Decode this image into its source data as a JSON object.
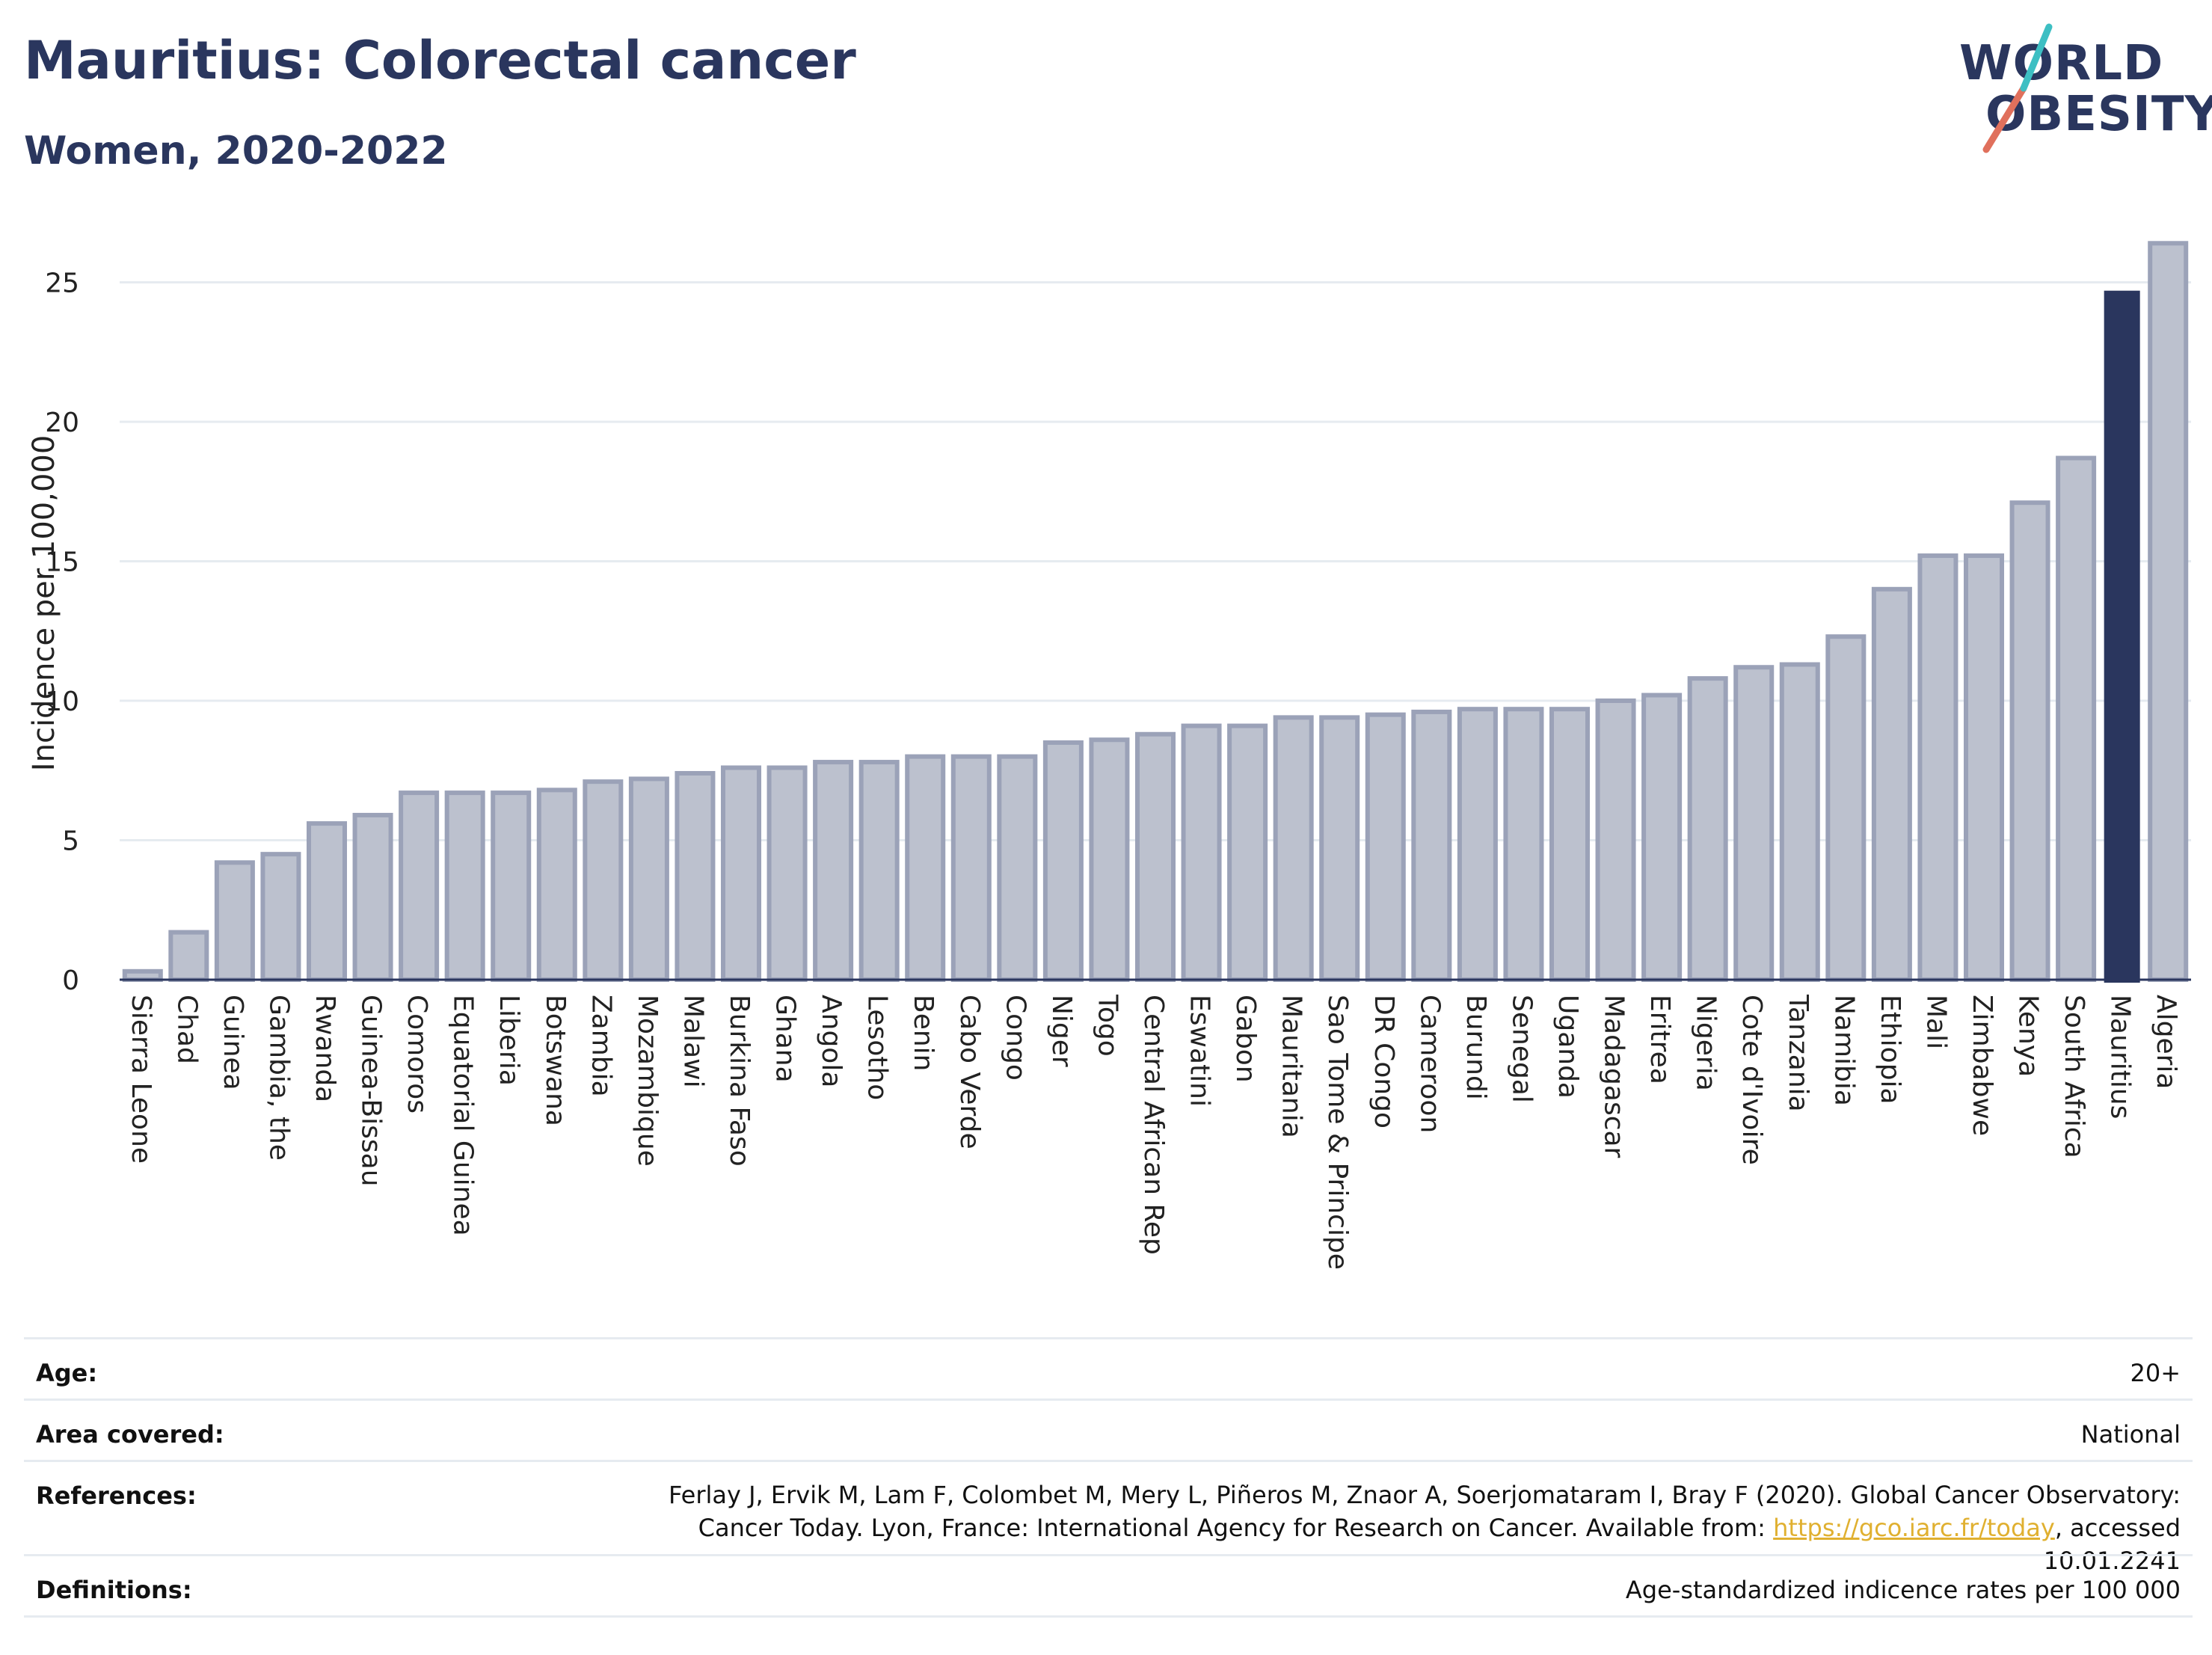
{
  "header": {
    "title": "Mauritius: Colorectal cancer",
    "subtitle": "Women, 2020-2022"
  },
  "logo": {
    "line1": "WORLD",
    "line2": "OBESITY",
    "brand_color": "#2a365e",
    "slash_colors": [
      "#e0705c",
      "#3dbfc3"
    ]
  },
  "colors": {
    "highlight": "#2a365e",
    "bar_fill": "#bcc1ce",
    "bar_stroke": "#9ba2b8",
    "grid": "#e6ebf0",
    "axis": "#2a365e"
  },
  "chart_data": {
    "type": "bar",
    "ylabel": "Incidence per 100,000",
    "ylim": [
      0,
      27
    ],
    "yticks": [
      0,
      5,
      10,
      15,
      20,
      25
    ],
    "highlight": "Mauritius",
    "grid": true,
    "categories": [
      "Sierra Leone",
      "Chad",
      "Guinea",
      "Gambia, the",
      "Rwanda",
      "Guinea-Bissau",
      "Comoros",
      "Equatorial Guinea",
      "Liberia",
      "Botswana",
      "Zambia",
      "Mozambique",
      "Malawi",
      "Burkina Faso",
      "Ghana",
      "Angola",
      "Lesotho",
      "Benin",
      "Cabo Verde",
      "Congo",
      "Niger",
      "Togo",
      "Central African Rep",
      "Eswatini",
      "Gabon",
      "Mauritania",
      "Sao Tome & Principe",
      "DR Congo",
      "Cameroon",
      "Burundi",
      "Senegal",
      "Uganda",
      "Madagascar",
      "Eritrea",
      "Nigeria",
      "Cote d'Ivoire",
      "Tanzania",
      "Namibia",
      "Ethiopia",
      "Mali",
      "Zimbabwe",
      "Kenya",
      "South Africa",
      "Mauritius",
      "Algeria"
    ],
    "values": [
      0.3,
      1.7,
      4.2,
      4.5,
      5.6,
      5.9,
      6.7,
      6.7,
      6.7,
      6.8,
      7.1,
      7.2,
      7.4,
      7.6,
      7.6,
      7.8,
      7.8,
      8.0,
      8.0,
      8.0,
      8.5,
      8.6,
      8.8,
      9.1,
      9.1,
      9.4,
      9.4,
      9.5,
      9.6,
      9.7,
      9.7,
      9.7,
      10.0,
      10.2,
      10.8,
      11.2,
      11.3,
      12.3,
      14.0,
      15.2,
      15.2,
      17.1,
      18.7,
      24.7,
      26.4
    ]
  },
  "meta": {
    "age_label": "Age:",
    "age_value": "20+",
    "area_label": "Area covered:",
    "area_value": "National",
    "references_label": "References:",
    "references_text_1": "Ferlay J, Ervik M, Lam F, Colombet M, Mery L, Piñeros M, Znaor A, Soerjomataram I, Bray F (2020). Global Cancer Observatory: Cancer Today. Lyon, France: International Agency for Research on Cancer. Available from: ",
    "references_link": "https://gco.iarc.fr/today",
    "references_text_2": ", accessed 10.01.2241",
    "definitions_label": "Definitions:",
    "definitions_value": "Age-standardized indicence rates per 100 000"
  }
}
